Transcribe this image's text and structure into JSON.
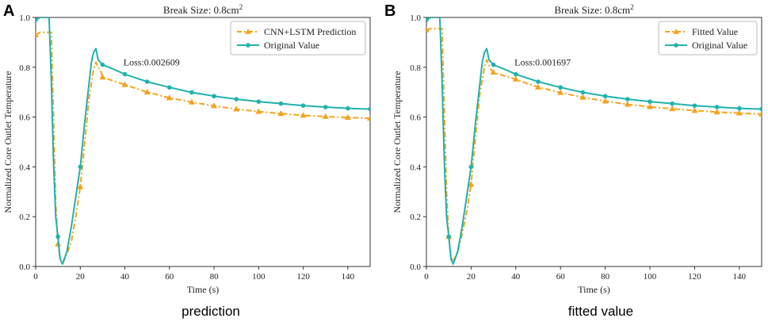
{
  "chart_data": [
    {
      "type": "line",
      "panel_label": "A",
      "caption": "prediction",
      "title_prefix": "Break Size: 0.8cm",
      "title_superscript": "2",
      "xlabel": "Time (s)",
      "ylabel": "Normalized Core Outlet Temperature",
      "xlim": [
        0,
        150
      ],
      "ylim": [
        0.0,
        1.0
      ],
      "xticks": [
        0,
        20,
        40,
        60,
        80,
        100,
        120,
        140
      ],
      "yticks": [
        0.0,
        0.2,
        0.4,
        0.6,
        0.8,
        1.0
      ],
      "annotation": "Loss:0.002609",
      "legend_position": "top-right",
      "series": [
        {
          "name": "CNN+LSTM Prediction",
          "color": "#f7a21b",
          "style": "dashdot",
          "marker": "triangle",
          "x": [
            0,
            2,
            4,
            6,
            7,
            8,
            9,
            10,
            11,
            12,
            14,
            16,
            18,
            20,
            22,
            24,
            26,
            27,
            28,
            29,
            30,
            35,
            40,
            45,
            50,
            60,
            70,
            80,
            90,
            100,
            110,
            120,
            130,
            140,
            150
          ],
          "values": [
            0.93,
            0.94,
            0.94,
            0.94,
            0.94,
            0.6,
            0.25,
            0.09,
            0.03,
            0.01,
            0.05,
            0.1,
            0.2,
            0.32,
            0.5,
            0.68,
            0.79,
            0.82,
            0.8,
            0.79,
            0.76,
            0.745,
            0.73,
            0.715,
            0.7,
            0.677,
            0.66,
            0.645,
            0.632,
            0.622,
            0.614,
            0.607,
            0.602,
            0.598,
            0.595
          ],
          "marker_x": [
            0,
            10,
            20,
            30,
            40,
            50,
            60,
            70,
            80,
            90,
            100,
            110,
            120,
            130,
            140,
            150
          ],
          "marker_values": [
            0.93,
            0.09,
            0.32,
            0.76,
            0.73,
            0.7,
            0.677,
            0.66,
            0.645,
            0.632,
            0.622,
            0.614,
            0.607,
            0.602,
            0.598,
            0.595
          ]
        },
        {
          "name": "Original Value",
          "color": "#1fb3ad",
          "style": "solid",
          "marker": "circle",
          "x": [
            0,
            1,
            2,
            4,
            6,
            7,
            8,
            9,
            10,
            11,
            12,
            14,
            16,
            18,
            20,
            22,
            24,
            25,
            26,
            27,
            28,
            29,
            30,
            35,
            40,
            45,
            50,
            60,
            70,
            80,
            90,
            100,
            110,
            120,
            130,
            140,
            150
          ],
          "values": [
            0.99,
            0.995,
            1.0,
            1.0,
            1.0,
            0.75,
            0.42,
            0.2,
            0.12,
            0.03,
            0.01,
            0.06,
            0.16,
            0.28,
            0.4,
            0.58,
            0.74,
            0.82,
            0.86,
            0.875,
            0.83,
            0.82,
            0.81,
            0.792,
            0.772,
            0.757,
            0.742,
            0.719,
            0.699,
            0.684,
            0.672,
            0.662,
            0.654,
            0.646,
            0.64,
            0.635,
            0.632
          ],
          "marker_x": [
            0,
            10,
            20,
            30,
            40,
            50,
            60,
            70,
            80,
            90,
            100,
            110,
            120,
            130,
            140,
            150
          ],
          "marker_values": [
            0.99,
            0.12,
            0.4,
            0.81,
            0.772,
            0.742,
            0.719,
            0.699,
            0.684,
            0.672,
            0.662,
            0.654,
            0.646,
            0.64,
            0.635,
            0.632
          ]
        }
      ]
    },
    {
      "type": "line",
      "panel_label": "B",
      "caption": "fitted value",
      "title_prefix": "Break Size: 0.8cm",
      "title_superscript": "2",
      "xlabel": "Time (s)",
      "ylabel": "Normalized Core Outlet Temperature",
      "xlim": [
        0,
        150
      ],
      "ylim": [
        0.0,
        1.0
      ],
      "xticks": [
        0,
        20,
        40,
        60,
        80,
        100,
        120,
        140
      ],
      "yticks": [
        0.0,
        0.2,
        0.4,
        0.6,
        0.8,
        1.0
      ],
      "annotation": "Loss:0.001697",
      "legend_position": "top-right",
      "series": [
        {
          "name": "Fitted Value",
          "color": "#f7a21b",
          "style": "dashdot",
          "marker": "triangle",
          "x": [
            0,
            2,
            4,
            6,
            7,
            8,
            9,
            10,
            11,
            12,
            14,
            16,
            18,
            20,
            22,
            24,
            26,
            27,
            28,
            29,
            30,
            35,
            40,
            45,
            50,
            60,
            70,
            80,
            90,
            100,
            110,
            120,
            130,
            140,
            150
          ],
          "values": [
            0.95,
            0.955,
            0.955,
            0.955,
            0.955,
            0.62,
            0.3,
            0.12,
            0.04,
            0.02,
            0.06,
            0.13,
            0.22,
            0.33,
            0.52,
            0.7,
            0.8,
            0.83,
            0.81,
            0.79,
            0.78,
            0.765,
            0.752,
            0.735,
            0.72,
            0.698,
            0.679,
            0.664,
            0.651,
            0.641,
            0.633,
            0.626,
            0.62,
            0.616,
            0.612
          ],
          "marker_x": [
            0,
            10,
            20,
            30,
            40,
            50,
            60,
            70,
            80,
            90,
            100,
            110,
            120,
            130,
            140,
            150
          ],
          "marker_values": [
            0.95,
            0.12,
            0.33,
            0.78,
            0.752,
            0.72,
            0.698,
            0.679,
            0.664,
            0.651,
            0.641,
            0.633,
            0.626,
            0.62,
            0.616,
            0.612
          ]
        },
        {
          "name": "Original Value",
          "color": "#1fb3ad",
          "style": "solid",
          "marker": "circle",
          "x": [
            0,
            1,
            2,
            4,
            6,
            7,
            8,
            9,
            10,
            11,
            12,
            14,
            16,
            18,
            20,
            22,
            24,
            25,
            26,
            27,
            28,
            29,
            30,
            35,
            40,
            45,
            50,
            60,
            70,
            80,
            90,
            100,
            110,
            120,
            130,
            140,
            150
          ],
          "values": [
            0.99,
            0.995,
            1.0,
            1.0,
            1.0,
            0.75,
            0.42,
            0.2,
            0.12,
            0.03,
            0.01,
            0.06,
            0.16,
            0.28,
            0.4,
            0.58,
            0.74,
            0.82,
            0.86,
            0.875,
            0.83,
            0.82,
            0.81,
            0.792,
            0.772,
            0.757,
            0.742,
            0.719,
            0.699,
            0.684,
            0.672,
            0.662,
            0.654,
            0.646,
            0.64,
            0.635,
            0.632
          ],
          "marker_x": [
            0,
            10,
            20,
            30,
            40,
            50,
            60,
            70,
            80,
            90,
            100,
            110,
            120,
            130,
            140,
            150
          ],
          "marker_values": [
            0.99,
            0.12,
            0.4,
            0.81,
            0.772,
            0.742,
            0.719,
            0.699,
            0.684,
            0.672,
            0.662,
            0.654,
            0.646,
            0.64,
            0.635,
            0.632
          ]
        }
      ]
    }
  ]
}
